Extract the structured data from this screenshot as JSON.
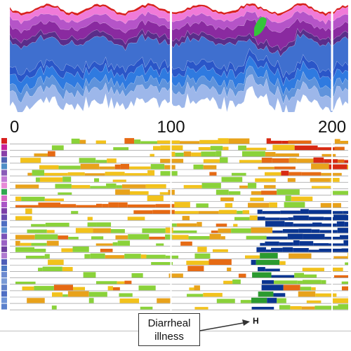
{
  "chart_data": [
    {
      "type": "area",
      "subtype": "streamgraph",
      "x_range": [
        0,
        210
      ],
      "vertical_markers": [
        100,
        200
      ],
      "layer_colors": [
        "#d8201f",
        "#f07ad8",
        "#b554c8",
        "#8a2aa0",
        "#5a2d8a",
        "#3f6fcf",
        "#2a56c8",
        "#2f7ae0",
        "#5f93dc",
        "#9db7ea"
      ],
      "accent_color": "#35c43a"
    },
    {
      "type": "heatmap",
      "subtype": "horizon",
      "x_ticks": [
        "0",
        "100",
        "200"
      ],
      "x_tick_values": [
        0,
        100,
        200
      ],
      "x_range": [
        0,
        210
      ],
      "row_count": 27,
      "row_colors": [
        "#d8201f",
        "#c7229a",
        "#8a3fa8",
        "#4f62b3",
        "#4f8ec7",
        "#8a5bb8",
        "#c27ad6",
        "#e88bd8",
        "#2fa84f",
        "#d56ac8",
        "#a955c6",
        "#7d3fa8",
        "#6a4db0",
        "#4f6ec2",
        "#5b8fd0",
        "#7a52b8",
        "#9a62c4",
        "#6d3fa0",
        "#b07ad0",
        "#4e5db8",
        "#4d77c4",
        "#6c8ad0",
        "#7a9ad6",
        "#5f7fc8",
        "#4e6ec4",
        "#6f94d8",
        "#5a80cc"
      ],
      "level_colors": [
        "#ffffff",
        "#8ad23a",
        "#f2c21c",
        "#e8a21b",
        "#e66a14",
        "#d82a12",
        "#0a3591",
        "#2b9a2f"
      ],
      "callout": {
        "text_line1": "Diarrheal",
        "text_line2": "illness",
        "marker": "H"
      }
    }
  ]
}
